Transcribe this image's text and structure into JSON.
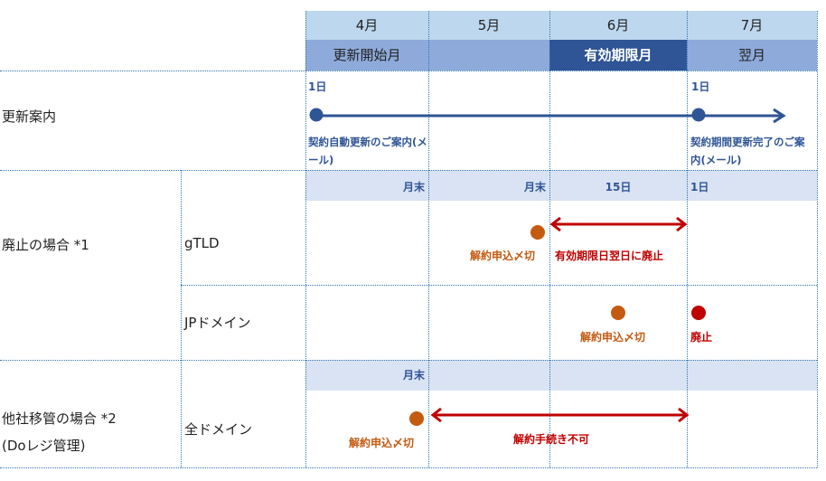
{
  "months": [
    "4月",
    "5月",
    "6月",
    "7月"
  ],
  "phases": [
    "更新開始月",
    "",
    "有効期限月",
    "翌月"
  ],
  "rows": {
    "renewal": {
      "label": "更新案内",
      "start_day": "1日",
      "end_day": "1日",
      "start_note": "契約自動更新のご案内(メール)",
      "end_note": "契約期間更新完了のご案内(メール)"
    },
    "abolish": {
      "label": "廃止の場合 *1",
      "subheaders": [
        "月末",
        "月末",
        "15日",
        "1日"
      ],
      "gtld": {
        "label": "gTLD",
        "deadline": "解約申込〆切",
        "span_note": "有効期限日翌日に廃止"
      },
      "jp": {
        "label": "JPドメイン",
        "deadline": "解約申込〆切",
        "abolished": "廃止"
      }
    },
    "transfer": {
      "label": "他社移管の場合 *2",
      "label2": "(Doレジ管理)",
      "subheader": "月末",
      "all": {
        "label": "全ドメイン",
        "deadline": "解約申込〆切",
        "span_note": "解約手続き不可"
      }
    }
  },
  "colors": {
    "header_light": "#bdd7ee",
    "header_mid": "#8eaadb",
    "header_dark": "#2f5597",
    "sub": "#dae3f3",
    "timeline": "#2f5597",
    "deadline": "#c55a11",
    "abolish": "#c00000"
  }
}
